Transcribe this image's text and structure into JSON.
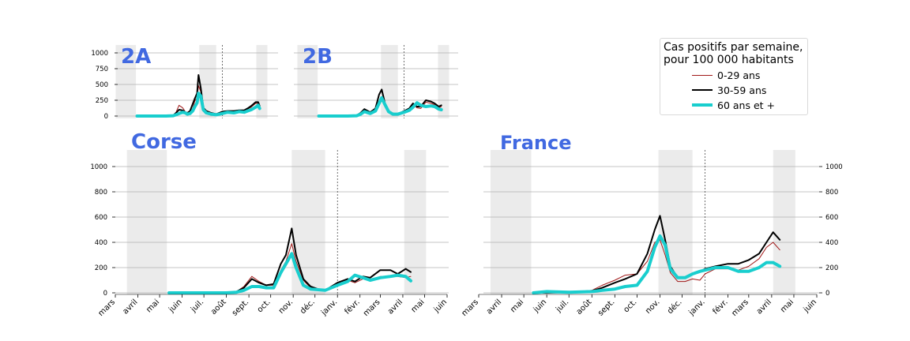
{
  "chart_data": [
    {
      "type": "line",
      "title": "2A",
      "x_range": [
        "2020-03-01",
        "2021-06-01"
      ],
      "ylim": [
        -30,
        1140
      ],
      "yticks": [
        0,
        250,
        500,
        750,
        1000
      ],
      "shaded_periods": [
        [
          "2020-03-17",
          "2020-05-11"
        ],
        [
          "2020-10-30",
          "2020-12-15"
        ],
        [
          "2021-04-03",
          "2021-05-03"
        ]
      ],
      "vline": "2021-01-01",
      "series": [
        {
          "name": "0-29 ans",
          "color": "#a01818",
          "x": [
            "2020-05-14",
            "2020-06-01",
            "2020-07-01",
            "2020-07-10",
            "2020-07-20",
            "2020-08-01",
            "2020-08-20",
            "2020-08-28",
            "2020-09-05",
            "2020-09-15",
            "2020-09-22",
            "2020-09-28",
            "2020-10-05",
            "2020-10-12",
            "2020-10-18",
            "2020-10-24",
            "2020-10-28",
            "2020-11-03",
            "2020-11-10",
            "2020-11-18",
            "2020-12-01",
            "2020-12-15",
            "2021-01-01",
            "2021-01-15",
            "2021-02-01",
            "2021-02-15",
            "2021-03-01",
            "2021-03-10",
            "2021-03-20",
            "2021-04-01",
            "2021-04-08",
            "2021-04-12"
          ],
          "values": [
            0,
            0,
            0,
            0,
            0,
            0,
            10,
            60,
            170,
            130,
            70,
            40,
            50,
            120,
            240,
            290,
            480,
            390,
            120,
            70,
            40,
            30,
            60,
            70,
            50,
            80,
            80,
            110,
            140,
            200,
            200,
            150
          ]
        },
        {
          "name": "30-59 ans",
          "color": "#000000",
          "x": [
            "2020-05-14",
            "2020-06-01",
            "2020-07-01",
            "2020-07-10",
            "2020-07-20",
            "2020-08-01",
            "2020-08-20",
            "2020-08-28",
            "2020-09-05",
            "2020-09-15",
            "2020-09-22",
            "2020-09-28",
            "2020-10-05",
            "2020-10-12",
            "2020-10-18",
            "2020-10-24",
            "2020-10-28",
            "2020-11-03",
            "2020-11-10",
            "2020-11-18",
            "2020-12-01",
            "2020-12-15",
            "2021-01-01",
            "2021-01-15",
            "2021-02-01",
            "2021-02-15",
            "2021-03-01",
            "2021-03-10",
            "2021-03-20",
            "2021-04-01",
            "2021-04-08",
            "2021-04-12"
          ],
          "values": [
            0,
            0,
            0,
            0,
            0,
            0,
            10,
            50,
            100,
            90,
            60,
            50,
            80,
            190,
            280,
            360,
            650,
            450,
            130,
            80,
            50,
            30,
            70,
            80,
            80,
            90,
            90,
            120,
            160,
            220,
            220,
            160
          ]
        },
        {
          "name": "60 ans et +",
          "color": "#19cece",
          "x": [
            "2020-05-14",
            "2020-06-01",
            "2020-07-01",
            "2020-07-10",
            "2020-07-20",
            "2020-08-01",
            "2020-08-20",
            "2020-08-28",
            "2020-09-05",
            "2020-09-15",
            "2020-09-22",
            "2020-09-28",
            "2020-10-05",
            "2020-10-12",
            "2020-10-18",
            "2020-10-24",
            "2020-10-28",
            "2020-11-03",
            "2020-11-10",
            "2020-11-18",
            "2020-12-01",
            "2020-12-15",
            "2021-01-01",
            "2021-01-15",
            "2021-02-01",
            "2021-02-15",
            "2021-03-01",
            "2021-03-10",
            "2021-03-20",
            "2021-04-01",
            "2021-04-08",
            "2021-04-12"
          ],
          "values": [
            0,
            0,
            0,
            0,
            0,
            0,
            5,
            20,
            40,
            60,
            50,
            30,
            40,
            80,
            150,
            210,
            360,
            320,
            100,
            50,
            30,
            20,
            40,
            60,
            50,
            70,
            60,
            80,
            100,
            140,
            170,
            120
          ]
        }
      ]
    },
    {
      "type": "line",
      "title": "2B",
      "x_range": [
        "2020-03-01",
        "2021-06-01"
      ],
      "ylim": [
        -30,
        1140
      ],
      "yticks": [
        0,
        250,
        500,
        750,
        1000
      ],
      "shaded_periods": [
        [
          "2020-03-17",
          "2020-05-11"
        ],
        [
          "2020-10-30",
          "2020-12-15"
        ],
        [
          "2021-04-03",
          "2021-05-03"
        ]
      ],
      "vline": "2021-01-01",
      "series": [
        {
          "name": "0-29 ans",
          "color": "#a01818",
          "x": [
            "2020-05-14",
            "2020-06-15",
            "2020-08-01",
            "2020-08-25",
            "2020-09-05",
            "2020-09-15",
            "2020-10-01",
            "2020-10-15",
            "2020-10-25",
            "2020-11-01",
            "2020-11-10",
            "2020-11-20",
            "2020-12-01",
            "2020-12-15",
            "2021-01-01",
            "2021-01-15",
            "2021-01-25",
            "2021-02-05",
            "2021-02-15",
            "2021-03-01",
            "2021-03-15",
            "2021-03-25",
            "2021-04-05",
            "2021-04-12"
          ],
          "values": [
            0,
            0,
            0,
            10,
            40,
            90,
            50,
            90,
            230,
            270,
            160,
            60,
            30,
            20,
            60,
            100,
            190,
            130,
            120,
            220,
            200,
            180,
            130,
            150
          ]
        },
        {
          "name": "30-59 ans",
          "color": "#000000",
          "x": [
            "2020-05-14",
            "2020-06-15",
            "2020-08-01",
            "2020-08-25",
            "2020-09-05",
            "2020-09-15",
            "2020-10-01",
            "2020-10-15",
            "2020-10-25",
            "2020-11-01",
            "2020-11-10",
            "2020-11-20",
            "2020-12-01",
            "2020-12-15",
            "2021-01-01",
            "2021-01-15",
            "2021-01-25",
            "2021-02-05",
            "2021-02-15",
            "2021-03-01",
            "2021-03-15",
            "2021-03-25",
            "2021-04-05",
            "2021-04-12"
          ],
          "values": [
            0,
            0,
            0,
            10,
            50,
            110,
            60,
            120,
            340,
            420,
            200,
            80,
            40,
            30,
            80,
            120,
            200,
            150,
            150,
            250,
            230,
            200,
            150,
            170
          ]
        },
        {
          "name": "60 ans et +",
          "color": "#19cece",
          "x": [
            "2020-05-14",
            "2020-06-15",
            "2020-08-01",
            "2020-08-25",
            "2020-09-05",
            "2020-09-15",
            "2020-10-01",
            "2020-10-15",
            "2020-10-25",
            "2020-11-01",
            "2020-11-10",
            "2020-11-20",
            "2020-12-01",
            "2020-12-15",
            "2021-01-01",
            "2021-01-15",
            "2021-01-25",
            "2021-02-05",
            "2021-02-15",
            "2021-03-01",
            "2021-03-15",
            "2021-03-25",
            "2021-04-05",
            "2021-04-12"
          ],
          "values": [
            0,
            0,
            0,
            5,
            30,
            70,
            40,
            80,
            200,
            290,
            180,
            70,
            30,
            30,
            60,
            90,
            140,
            210,
            170,
            150,
            160,
            150,
            110,
            100
          ]
        }
      ]
    },
    {
      "type": "line",
      "title": "Corse",
      "x_range": [
        "2020-03-01",
        "2021-06-01"
      ],
      "ylim": [
        -15,
        1130
      ],
      "yticks": [
        0,
        200,
        400,
        600,
        800,
        1000
      ],
      "tick_labels": [
        "mars",
        "avril",
        "mai",
        "juin",
        "juil.",
        "août",
        "sept.",
        "oct.",
        "nov.",
        "déc.",
        "janv.",
        "févr.",
        "mars",
        "avril",
        "mai",
        "juin"
      ],
      "shaded_periods": [
        [
          "2020-03-17",
          "2020-05-11"
        ],
        [
          "2020-10-30",
          "2020-12-15"
        ],
        [
          "2021-04-03",
          "2021-05-03"
        ]
      ],
      "vline": "2021-01-01",
      "series": [
        {
          "name": "0-29 ans",
          "color": "#a01818",
          "x": [
            "2020-05-14",
            "2020-06-01",
            "2020-07-01",
            "2020-07-20",
            "2020-08-01",
            "2020-08-15",
            "2020-08-25",
            "2020-09-05",
            "2020-09-15",
            "2020-09-25",
            "2020-10-05",
            "2020-10-15",
            "2020-10-22",
            "2020-10-30",
            "2020-11-05",
            "2020-11-15",
            "2020-11-25",
            "2020-12-05",
            "2020-12-15",
            "2021-01-01",
            "2021-01-15",
            "2021-01-25",
            "2021-02-05",
            "2021-02-15",
            "2021-03-01",
            "2021-03-15",
            "2021-03-25",
            "2021-04-05",
            "2021-04-12"
          ],
          "values": [
            0,
            0,
            0,
            0,
            0,
            10,
            50,
            130,
            90,
            60,
            60,
            180,
            250,
            390,
            250,
            100,
            40,
            30,
            20,
            60,
            100,
            80,
            110,
            100,
            130,
            130,
            130,
            120,
            130
          ]
        },
        {
          "name": "30-59 ans",
          "color": "#000000",
          "x": [
            "2020-05-14",
            "2020-06-01",
            "2020-07-01",
            "2020-07-20",
            "2020-08-01",
            "2020-08-15",
            "2020-08-25",
            "2020-09-05",
            "2020-09-15",
            "2020-09-25",
            "2020-10-05",
            "2020-10-15",
            "2020-10-22",
            "2020-10-30",
            "2020-11-05",
            "2020-11-15",
            "2020-11-25",
            "2020-12-05",
            "2020-12-15",
            "2021-01-01",
            "2021-01-15",
            "2021-01-25",
            "2021-02-05",
            "2021-02-15",
            "2021-03-01",
            "2021-03-15",
            "2021-03-25",
            "2021-04-05",
            "2021-04-12"
          ],
          "values": [
            0,
            0,
            0,
            0,
            0,
            10,
            40,
            110,
            80,
            60,
            70,
            230,
            300,
            510,
            300,
            110,
            50,
            30,
            20,
            80,
            110,
            90,
            130,
            120,
            180,
            180,
            150,
            190,
            165
          ]
        },
        {
          "name": "60 ans et +",
          "color": "#19cece",
          "x": [
            "2020-05-14",
            "2020-06-01",
            "2020-07-01",
            "2020-07-20",
            "2020-08-01",
            "2020-08-15",
            "2020-08-25",
            "2020-09-05",
            "2020-09-15",
            "2020-09-25",
            "2020-10-05",
            "2020-10-15",
            "2020-10-22",
            "2020-10-30",
            "2020-11-05",
            "2020-11-15",
            "2020-11-25",
            "2020-12-05",
            "2020-12-15",
            "2021-01-01",
            "2021-01-15",
            "2021-01-25",
            "2021-02-05",
            "2021-02-15",
            "2021-03-01",
            "2021-03-15",
            "2021-03-25",
            "2021-04-05",
            "2021-04-12"
          ],
          "values": [
            0,
            0,
            0,
            0,
            0,
            5,
            20,
            50,
            50,
            40,
            40,
            160,
            230,
            310,
            200,
            60,
            30,
            25,
            20,
            60,
            90,
            140,
            120,
            100,
            120,
            130,
            140,
            130,
            95
          ]
        }
      ]
    },
    {
      "type": "line",
      "title": "France",
      "x_range": [
        "2020-03-01",
        "2021-06-01"
      ],
      "ylim": [
        -15,
        1130
      ],
      "yticks": [
        0,
        200,
        400,
        600,
        800,
        1000
      ],
      "y_axis_side": "right",
      "tick_labels": [
        "mars",
        "avril",
        "mai",
        "juin",
        "juil.",
        "août",
        "sept.",
        "oct.",
        "nov.",
        "déc.",
        "janv.",
        "févr.",
        "mars",
        "avril",
        "mai",
        "juin"
      ],
      "shaded_periods": [
        [
          "2020-03-17",
          "2020-05-11"
        ],
        [
          "2020-10-30",
          "2020-12-15"
        ],
        [
          "2021-04-03",
          "2021-05-03"
        ]
      ],
      "vline": "2021-01-01",
      "series": [
        {
          "name": "0-29 ans",
          "color": "#a01818",
          "x": [
            "2020-05-14",
            "2020-06-01",
            "2020-07-01",
            "2020-08-01",
            "2020-08-15",
            "2020-09-01",
            "2020-09-15",
            "2020-10-01",
            "2020-10-15",
            "2020-10-25",
            "2020-11-01",
            "2020-11-08",
            "2020-11-15",
            "2020-11-25",
            "2020-12-05",
            "2020-12-15",
            "2020-12-25",
            "2021-01-01",
            "2021-01-15",
            "2021-02-01",
            "2021-02-15",
            "2021-03-01",
            "2021-03-15",
            "2021-03-25",
            "2021-04-03",
            "2021-04-12"
          ],
          "values": [
            0,
            0,
            5,
            20,
            60,
            100,
            140,
            150,
            250,
            400,
            420,
            300,
            160,
            90,
            90,
            110,
            100,
            150,
            190,
            190,
            180,
            210,
            270,
            360,
            400,
            340
          ]
        },
        {
          "name": "30-59 ans",
          "color": "#000000",
          "x": [
            "2020-05-14",
            "2020-06-01",
            "2020-07-01",
            "2020-08-01",
            "2020-08-15",
            "2020-09-01",
            "2020-09-15",
            "2020-10-01",
            "2020-10-15",
            "2020-10-25",
            "2020-11-01",
            "2020-11-08",
            "2020-11-15",
            "2020-11-25",
            "2020-12-05",
            "2020-12-15",
            "2020-12-25",
            "2021-01-01",
            "2021-01-15",
            "2021-02-01",
            "2021-02-15",
            "2021-03-01",
            "2021-03-15",
            "2021-03-25",
            "2021-04-03",
            "2021-04-12"
          ],
          "values": [
            0,
            0,
            5,
            15,
            40,
            80,
            110,
            150,
            310,
            500,
            610,
            420,
            210,
            120,
            120,
            150,
            170,
            190,
            210,
            230,
            230,
            260,
            310,
            400,
            480,
            420
          ]
        },
        {
          "name": "60 ans et +",
          "color": "#19cece",
          "x": [
            "2020-05-14",
            "2020-06-01",
            "2020-07-01",
            "2020-08-01",
            "2020-08-15",
            "2020-09-01",
            "2020-09-15",
            "2020-10-01",
            "2020-10-15",
            "2020-10-25",
            "2020-11-01",
            "2020-11-08",
            "2020-11-15",
            "2020-11-25",
            "2020-12-05",
            "2020-12-15",
            "2020-12-25",
            "2021-01-01",
            "2021-01-15",
            "2021-02-01",
            "2021-02-15",
            "2021-03-01",
            "2021-03-15",
            "2021-03-25",
            "2021-04-03",
            "2021-04-12"
          ],
          "values": [
            0,
            10,
            5,
            10,
            20,
            30,
            50,
            60,
            170,
            360,
            450,
            380,
            190,
            120,
            120,
            150,
            170,
            180,
            200,
            200,
            170,
            170,
            200,
            240,
            240,
            210
          ]
        }
      ]
    }
  ],
  "legend": {
    "title_line1": "Cas positifs par semaine,",
    "title_line2": "pour 100 000 habitants",
    "items": [
      {
        "label": "0-29 ans",
        "color": "#a01818",
        "width": 1
      },
      {
        "label": "30-59 ans",
        "color": "#000000",
        "width": 2
      },
      {
        "label": "60 ans et +",
        "color": "#19cece",
        "width": 4
      }
    ]
  }
}
